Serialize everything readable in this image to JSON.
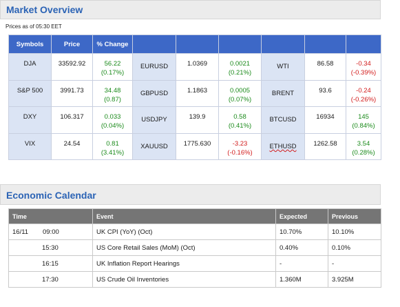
{
  "market": {
    "title": "Market Overview",
    "as_of": "Prices as of 05:30 EET",
    "headers": [
      "Symbols",
      "Price",
      "% Change"
    ],
    "rows": [
      [
        {
          "symbol": "DJA",
          "price": "33592.92",
          "change": "56.22",
          "pct": "(0.17%)",
          "dir": "pos"
        },
        {
          "symbol": "EURUSD",
          "price": "1.0369",
          "change": "0.0021",
          "pct": "(0.21%)",
          "dir": "pos"
        },
        {
          "symbol": "WTI",
          "price": "86.58",
          "change": "-0.34",
          "pct": "(-0.39%)",
          "dir": "neg"
        }
      ],
      [
        {
          "symbol": "S&P 500",
          "price": "3991.73",
          "change": "34.48",
          "pct": "(0.87)",
          "dir": "pos"
        },
        {
          "symbol": "GBPUSD",
          "price": "1.1863",
          "change": "0.0005",
          "pct": "(0.07%)",
          "dir": "pos"
        },
        {
          "symbol": "BRENT",
          "price": "93.6",
          "change": "-0.24",
          "pct": "(-0.26%)",
          "dir": "neg"
        }
      ],
      [
        {
          "symbol": "DXY",
          "price": "106.317",
          "change": "0.033",
          "pct": "(0.04%)",
          "dir": "pos"
        },
        {
          "symbol": "USDJPY",
          "price": "139.9",
          "change": "0.58",
          "pct": "(0.41%)",
          "dir": "pos"
        },
        {
          "symbol": "BTCUSD",
          "price": "16934",
          "change": "145",
          "pct": "(0.84%)",
          "dir": "pos"
        }
      ],
      [
        {
          "symbol": "VIX",
          "price": "24.54",
          "change": "0.81",
          "pct": "(3.41%)",
          "dir": "pos"
        },
        {
          "symbol": "XAUUSD",
          "price": "1775.630",
          "change": "-3.23",
          "pct": "(-0.16%)",
          "dir": "neg"
        },
        {
          "symbol": "ETHUSD",
          "price": "1262.58",
          "change": "3.54",
          "pct": "(0.28%)",
          "dir": "pos"
        }
      ]
    ]
  },
  "calendar": {
    "title": "Economic Calendar",
    "headers": [
      "Time",
      "Event",
      "Expected",
      "Previous"
    ],
    "rows": [
      {
        "date": "16/11",
        "time": "09:00",
        "event": "UK CPI (YoY) (Oct)",
        "expected": "10.70%",
        "previous": "10.10%"
      },
      {
        "date": "",
        "time": "15:30",
        "event": "US Core Retail Sales (MoM) (Oct)",
        "expected": "0.40%",
        "previous": "0.10%"
      },
      {
        "date": "",
        "time": "16:15",
        "event": "UK Inflation Report Hearings",
        "expected": "-",
        "previous": "-"
      },
      {
        "date": "",
        "time": "17:30",
        "event": "US Crude Oil Inventories",
        "expected": "1.360M",
        "previous": "3.925M"
      }
    ]
  },
  "colors": {
    "header_blue": "#3d68c7",
    "symbol_bg": "#dbe4f4",
    "positive": "#1a8a1a",
    "negative": "#d21b1b",
    "title_blue": "#2b63b5",
    "cal_header": "#757575"
  }
}
